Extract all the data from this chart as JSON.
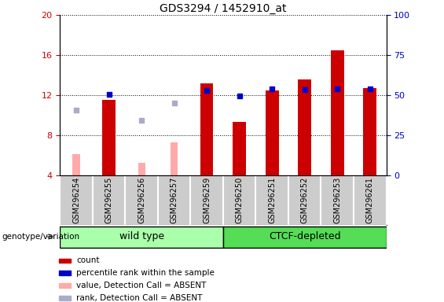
{
  "title": "GDS3294 / 1452910_at",
  "samples": [
    "GSM296254",
    "GSM296255",
    "GSM296256",
    "GSM296257",
    "GSM296259",
    "GSM296250",
    "GSM296251",
    "GSM296252",
    "GSM296253",
    "GSM296261"
  ],
  "count_values": [
    null,
    11.5,
    null,
    null,
    13.2,
    9.3,
    12.5,
    13.6,
    16.5,
    12.7
  ],
  "rank_values": [
    null,
    12.1,
    null,
    null,
    12.45,
    11.9,
    12.6,
    12.55,
    12.65,
    12.6
  ],
  "absent_value_values": [
    6.1,
    null,
    5.2,
    7.3,
    null,
    null,
    null,
    null,
    null,
    null
  ],
  "absent_rank_values": [
    10.5,
    null,
    9.5,
    11.2,
    null,
    null,
    null,
    null,
    null,
    null
  ],
  "count_color": "#cc0000",
  "rank_color": "#0000cc",
  "absent_value_color": "#ffaaaa",
  "absent_rank_color": "#aaaacc",
  "wt_color": "#aaffaa",
  "ctcf_color": "#55dd55",
  "ylim_left": [
    4,
    20
  ],
  "ylim_right": [
    0,
    100
  ],
  "yticks_left": [
    4,
    8,
    12,
    16,
    20
  ],
  "yticks_right": [
    0,
    25,
    50,
    75,
    100
  ],
  "group_label": "genotype/variation",
  "wt_label": "wild type",
  "ctcf_label": "CTCF-depleted",
  "wt_count": 5,
  "ctcf_count": 5,
  "legend_items": [
    {
      "label": "count",
      "color": "#cc0000"
    },
    {
      "label": "percentile rank within the sample",
      "color": "#0000cc"
    },
    {
      "label": "value, Detection Call = ABSENT",
      "color": "#ffaaaa"
    },
    {
      "label": "rank, Detection Call = ABSENT",
      "color": "#aaaacc"
    }
  ],
  "bar_width": 0.4,
  "tick_area_color": "#cccccc",
  "grid_color": "#000000",
  "plot_bg_color": "#ffffff"
}
